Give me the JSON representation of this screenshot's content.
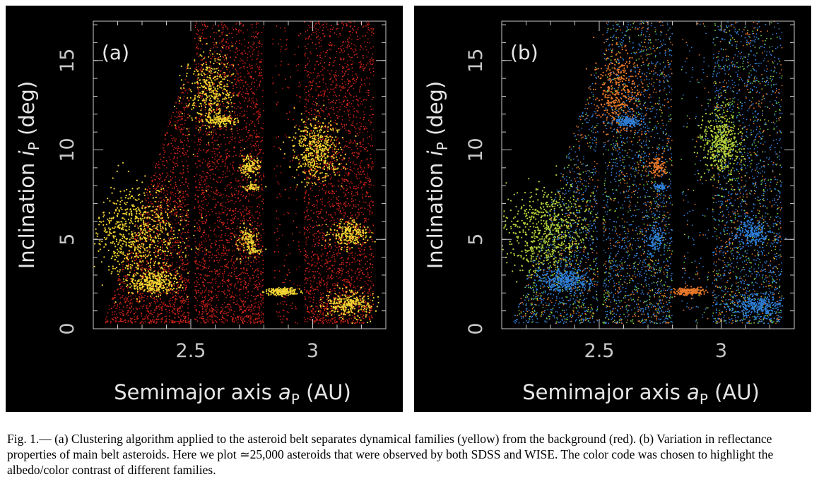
{
  "figure": {
    "label": "Fig. 1.—",
    "caption": "(a) Clustering algorithm applied to the asteroid belt separates dynamical families (yellow) from the background (red). (b) Variation in reflectance properties of main belt asteroids. Here we plot ≃25,000 asteroids that were observed by both SDSS and WISE. The color code was chosen to highlight the albedo/color contrast of different families."
  },
  "chart_data": [
    {
      "type": "scatter",
      "panel_label": "(a)",
      "xlabel_main": "Semimajor axis ",
      "xlabel_sym": "a",
      "xlabel_sub": "P",
      "xlabel_unit": " (AU)",
      "ylabel_main": "Inclination ",
      "ylabel_sym": "i",
      "ylabel_sub": "P",
      "ylabel_unit": " (deg)",
      "xlim": [
        2.1,
        3.3
      ],
      "ylim": [
        0,
        17.2
      ],
      "xticks": [
        2.5,
        3.0
      ],
      "xtick_labels": [
        "2.5",
        "3"
      ],
      "yticks": [
        0,
        5,
        10,
        15
      ],
      "ytick_labels": [
        "0",
        "5",
        "10",
        "15"
      ],
      "grid": false,
      "background_color": "#c81e14",
      "background_label": "background (red)",
      "family_color": "#f0d232",
      "families": [
        {
          "a": 2.28,
          "i": 5.4,
          "da": 0.09,
          "di": 1.2,
          "n": 700
        },
        {
          "a": 2.35,
          "i": 2.6,
          "da": 0.05,
          "di": 0.35,
          "n": 350
        },
        {
          "a": 2.58,
          "i": 13.3,
          "da": 0.05,
          "di": 1.1,
          "n": 380
        },
        {
          "a": 2.62,
          "i": 11.6,
          "da": 0.03,
          "di": 0.15,
          "n": 120
        },
        {
          "a": 2.74,
          "i": 9.1,
          "da": 0.02,
          "di": 0.3,
          "n": 120
        },
        {
          "a": 2.75,
          "i": 7.9,
          "da": 0.015,
          "di": 0.1,
          "n": 50
        },
        {
          "a": 2.73,
          "i": 5.0,
          "da": 0.02,
          "di": 0.4,
          "n": 120
        },
        {
          "a": 2.76,
          "i": 4.4,
          "da": 0.015,
          "di": 0.1,
          "n": 40
        },
        {
          "a": 2.87,
          "i": 2.1,
          "da": 0.03,
          "di": 0.1,
          "n": 200
        },
        {
          "a": 3.02,
          "i": 10.0,
          "da": 0.05,
          "di": 0.9,
          "n": 450
        },
        {
          "a": 3.15,
          "i": 5.3,
          "da": 0.04,
          "di": 0.35,
          "n": 220
        },
        {
          "a": 3.15,
          "i": 1.4,
          "da": 0.05,
          "di": 0.35,
          "n": 280
        }
      ]
    },
    {
      "type": "scatter",
      "panel_label": "(b)",
      "xlabel_main": "Semimajor axis ",
      "xlabel_sym": "a",
      "xlabel_sub": "P",
      "xlabel_unit": " (AU)",
      "ylabel_main": "Inclination ",
      "ylabel_sym": "i",
      "ylabel_sub": "P",
      "ylabel_unit": " (deg)",
      "xlim": [
        2.1,
        3.3
      ],
      "ylim": [
        0,
        17.2
      ],
      "xticks": [
        2.5,
        3.0
      ],
      "xtick_labels": [
        "2.5",
        "3"
      ],
      "yticks": [
        0,
        5,
        10,
        15
      ],
      "ytick_labels": [
        "0",
        "5",
        "10",
        "15"
      ],
      "grid": false,
      "asteroid_count": "≃25,000",
      "colors": {
        "blue": "#2f7fd8",
        "orange": "#e8782a",
        "green": "#6cd04a",
        "yellow_green": "#b4d23c"
      },
      "families": [
        {
          "a": 2.28,
          "i": 5.4,
          "da": 0.09,
          "di": 1.2,
          "n": 600,
          "color": "yellow_green"
        },
        {
          "a": 2.36,
          "i": 2.7,
          "da": 0.05,
          "di": 0.3,
          "n": 300,
          "color": "blue"
        },
        {
          "a": 2.58,
          "i": 13.3,
          "da": 0.05,
          "di": 1.1,
          "n": 350,
          "color": "orange"
        },
        {
          "a": 2.62,
          "i": 11.6,
          "da": 0.03,
          "di": 0.15,
          "n": 140,
          "color": "blue"
        },
        {
          "a": 2.74,
          "i": 9.1,
          "da": 0.02,
          "di": 0.3,
          "n": 100,
          "color": "orange"
        },
        {
          "a": 2.75,
          "i": 7.9,
          "da": 0.015,
          "di": 0.1,
          "n": 60,
          "color": "blue"
        },
        {
          "a": 2.73,
          "i": 5.0,
          "da": 0.02,
          "di": 0.4,
          "n": 110,
          "color": "blue"
        },
        {
          "a": 2.87,
          "i": 2.1,
          "da": 0.03,
          "di": 0.1,
          "n": 200,
          "color": "orange"
        },
        {
          "a": 3.0,
          "i": 10.3,
          "da": 0.04,
          "di": 0.9,
          "n": 450,
          "color": "yellow_green"
        },
        {
          "a": 3.13,
          "i": 5.3,
          "da": 0.04,
          "di": 0.35,
          "n": 200,
          "color": "blue"
        },
        {
          "a": 3.15,
          "i": 1.3,
          "da": 0.05,
          "di": 0.35,
          "n": 250,
          "color": "blue"
        }
      ]
    }
  ]
}
